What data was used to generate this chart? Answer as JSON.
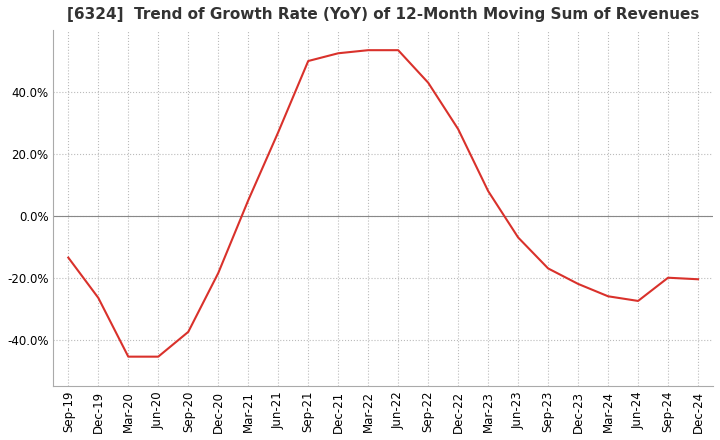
{
  "title": "[6324]  Trend of Growth Rate (YoY) of 12-Month Moving Sum of Revenues",
  "title_fontsize": 11,
  "line_color": "#d9312b",
  "background_color": "#ffffff",
  "plot_bg_color": "#ffffff",
  "grid_color": "#bbbbbb",
  "zero_line_color": "#888888",
  "ylim": [
    -0.55,
    0.6
  ],
  "yticks": [
    -0.4,
    -0.2,
    0.0,
    0.2,
    0.4
  ],
  "dates": [
    "Sep-19",
    "Dec-19",
    "Mar-20",
    "Jun-20",
    "Sep-20",
    "Dec-20",
    "Mar-21",
    "Jun-21",
    "Sep-21",
    "Dec-21",
    "Mar-22",
    "Jun-22",
    "Sep-22",
    "Dec-22",
    "Mar-23",
    "Jun-23",
    "Sep-23",
    "Dec-23",
    "Mar-24",
    "Jun-24",
    "Sep-24",
    "Dec-24"
  ],
  "values": [
    -0.135,
    -0.265,
    -0.455,
    -0.455,
    -0.375,
    -0.185,
    0.05,
    0.27,
    0.5,
    0.525,
    0.535,
    0.535,
    0.43,
    0.28,
    0.08,
    -0.07,
    -0.17,
    -0.22,
    -0.26,
    -0.275,
    -0.2,
    -0.205
  ],
  "tick_labelsize": 8.5,
  "ylabel_labelsize": 9
}
